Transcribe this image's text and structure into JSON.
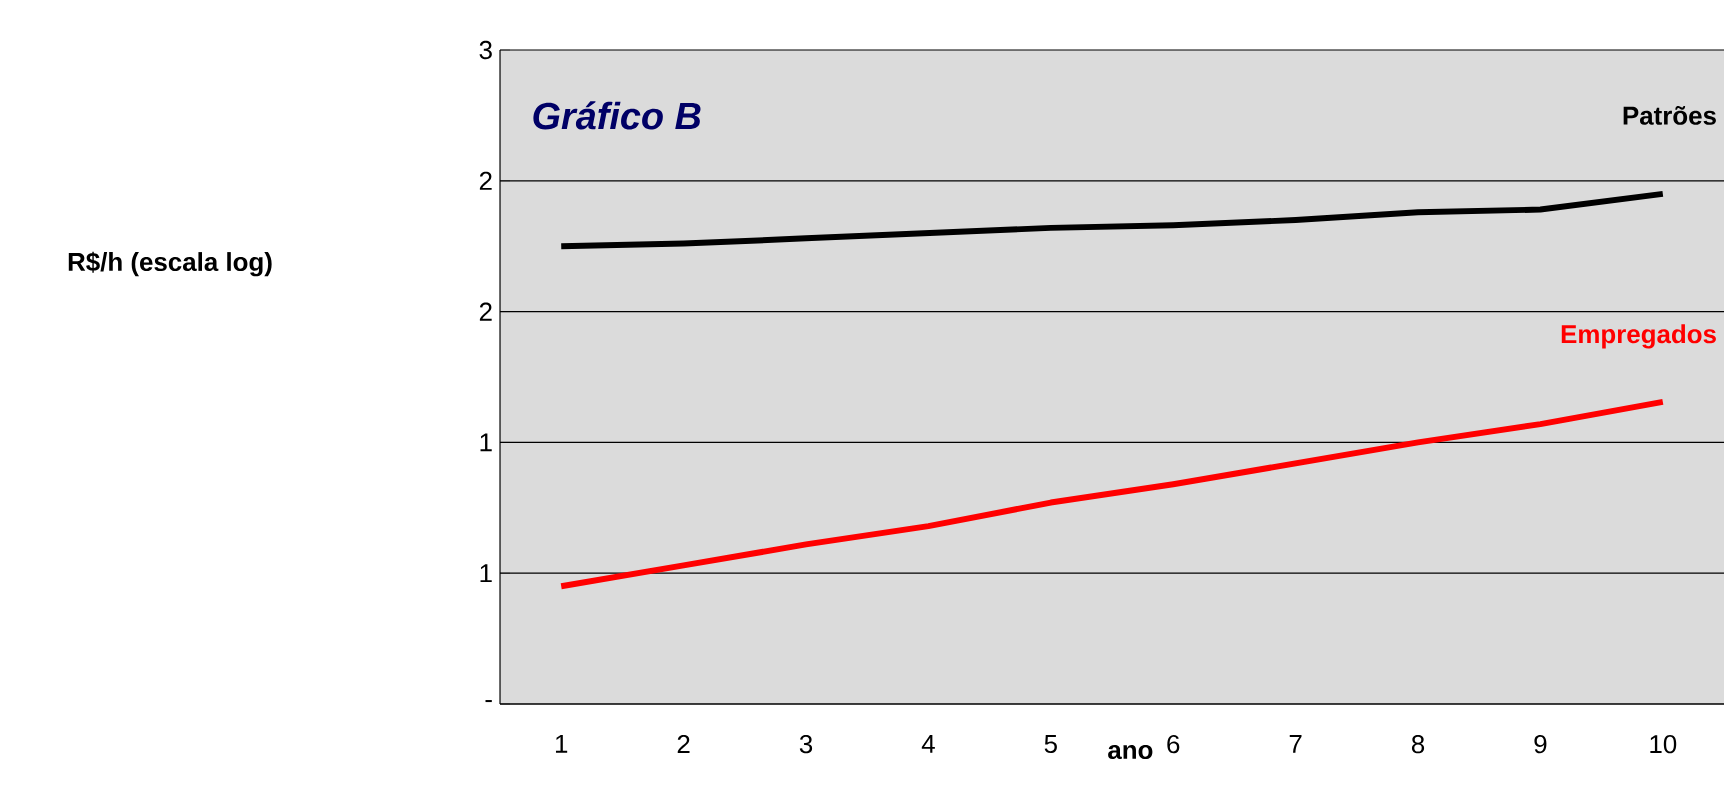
{
  "chart_data": {
    "type": "line",
    "title": "Gráfico B",
    "xlabel": "ano",
    "annotations": [
      "R$/h (escala log)"
    ],
    "categories": [
      "1",
      "2",
      "3",
      "4",
      "5",
      "6",
      "7",
      "8",
      "9",
      "10"
    ],
    "series": [
      {
        "name": "Patrões",
        "color": "#000000",
        "values": [
          1.75,
          1.76,
          1.78,
          1.8,
          1.82,
          1.83,
          1.85,
          1.88,
          1.89,
          1.95
        ]
      },
      {
        "name": "Empregados",
        "color": "#ff0000",
        "values": [
          0.45,
          0.53,
          0.61,
          0.68,
          0.77,
          0.84,
          0.92,
          1.0,
          1.07,
          1.155
        ]
      }
    ],
    "ylim": [
      0,
      2.5
    ],
    "yticks": [
      {
        "value": 0,
        "label": "-"
      },
      {
        "value": 0.5,
        "label": "1"
      },
      {
        "value": 1,
        "label": "1"
      },
      {
        "value": 1.5,
        "label": "2"
      },
      {
        "value": 2,
        "label": "2"
      },
      {
        "value": 2.5,
        "label": "3"
      }
    ],
    "grid": "y",
    "marker": "none",
    "line_style": "solid"
  }
}
